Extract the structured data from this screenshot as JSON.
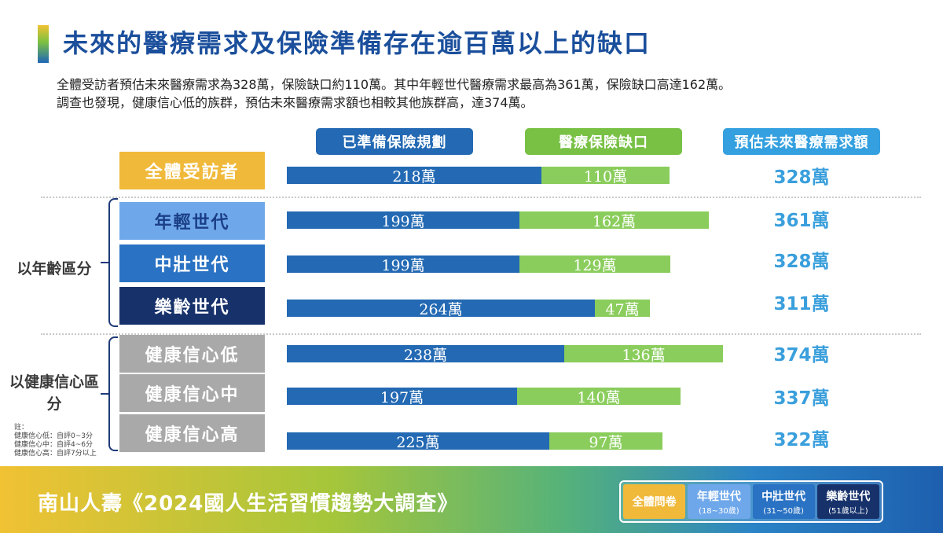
{
  "title": "未來的醫療需求及保險準備存在逾百萬以上的缺口",
  "description": [
    "全體受訪者預估未來醫療需求為328萬，保險缺口約110萬。其中年輕世代醫療需求最高為361萬，保險缺口高達162萬。",
    "調查也發現，健康信心低的族群，預估未來醫療需求額也相較其他族群高，達374萬。"
  ],
  "headers": {
    "prepared": "已準備保險規劃",
    "gap": "醫療保險缺口",
    "need": "預估未來醫療需求額"
  },
  "colors": {
    "prepared": "#2369b3",
    "gap": "#8acd5c",
    "need_text": "#3a9fdc",
    "all": "#f0b93a",
    "young": "#6fa8ea",
    "middle": "#2a72c3",
    "senior": "#17326b",
    "health": "#a9a9a9"
  },
  "groups": {
    "age": "以年齡區分",
    "health": "以健康信心區分"
  },
  "chart_data": {
    "type": "bar",
    "stacked": true,
    "orientation": "horizontal",
    "categories": [
      "全體受訪者",
      "年輕世代",
      "中壯世代",
      "樂齡世代",
      "健康信心低",
      "健康信心中",
      "健康信心高"
    ],
    "series": [
      {
        "name": "已準備保險規劃",
        "values": [
          218,
          199,
          199,
          264,
          238,
          197,
          225
        ]
      },
      {
        "name": "醫療保險缺口",
        "values": [
          110,
          162,
          129,
          47,
          136,
          140,
          97
        ]
      }
    ],
    "totals_name": "預估未來醫療需求額",
    "totals": [
      328,
      361,
      328,
      311,
      374,
      337,
      322
    ],
    "unit": "萬"
  },
  "rows": [
    {
      "label": "全體受訪者",
      "prepared": "218萬",
      "gap": "110萬",
      "need": "328萬"
    },
    {
      "label": "年輕世代",
      "prepared": "199萬",
      "gap": "162萬",
      "need": "361萬"
    },
    {
      "label": "中壯世代",
      "prepared": "199萬",
      "gap": "129萬",
      "need": "328萬"
    },
    {
      "label": "樂齡世代",
      "prepared": "264萬",
      "gap": "47萬",
      "need": "311萬"
    },
    {
      "label": "健康信心低",
      "prepared": "238萬",
      "gap": "136萬",
      "need": "374萬"
    },
    {
      "label": "健康信心中",
      "prepared": "197萬",
      "gap": "140萬",
      "need": "337萬"
    },
    {
      "label": "健康信心高",
      "prepared": "225萬",
      "gap": "97萬",
      "need": "322萬"
    }
  ],
  "note": {
    "title": "註：",
    "lines": [
      "健康信心低：自評0~3分",
      "健康信心中：自評4~6分",
      "健康信心高：自評7分以上"
    ]
  },
  "footer": {
    "title": "南山人壽《2024國人生活習慣趨勢大調查》",
    "legend": [
      {
        "label": "全體問卷",
        "sub": ""
      },
      {
        "label": "年輕世代",
        "sub": "(18~30歲)"
      },
      {
        "label": "中壯世代",
        "sub": "(31~50歲)"
      },
      {
        "label": "樂齡世代",
        "sub": "(51歲以上)"
      }
    ]
  }
}
